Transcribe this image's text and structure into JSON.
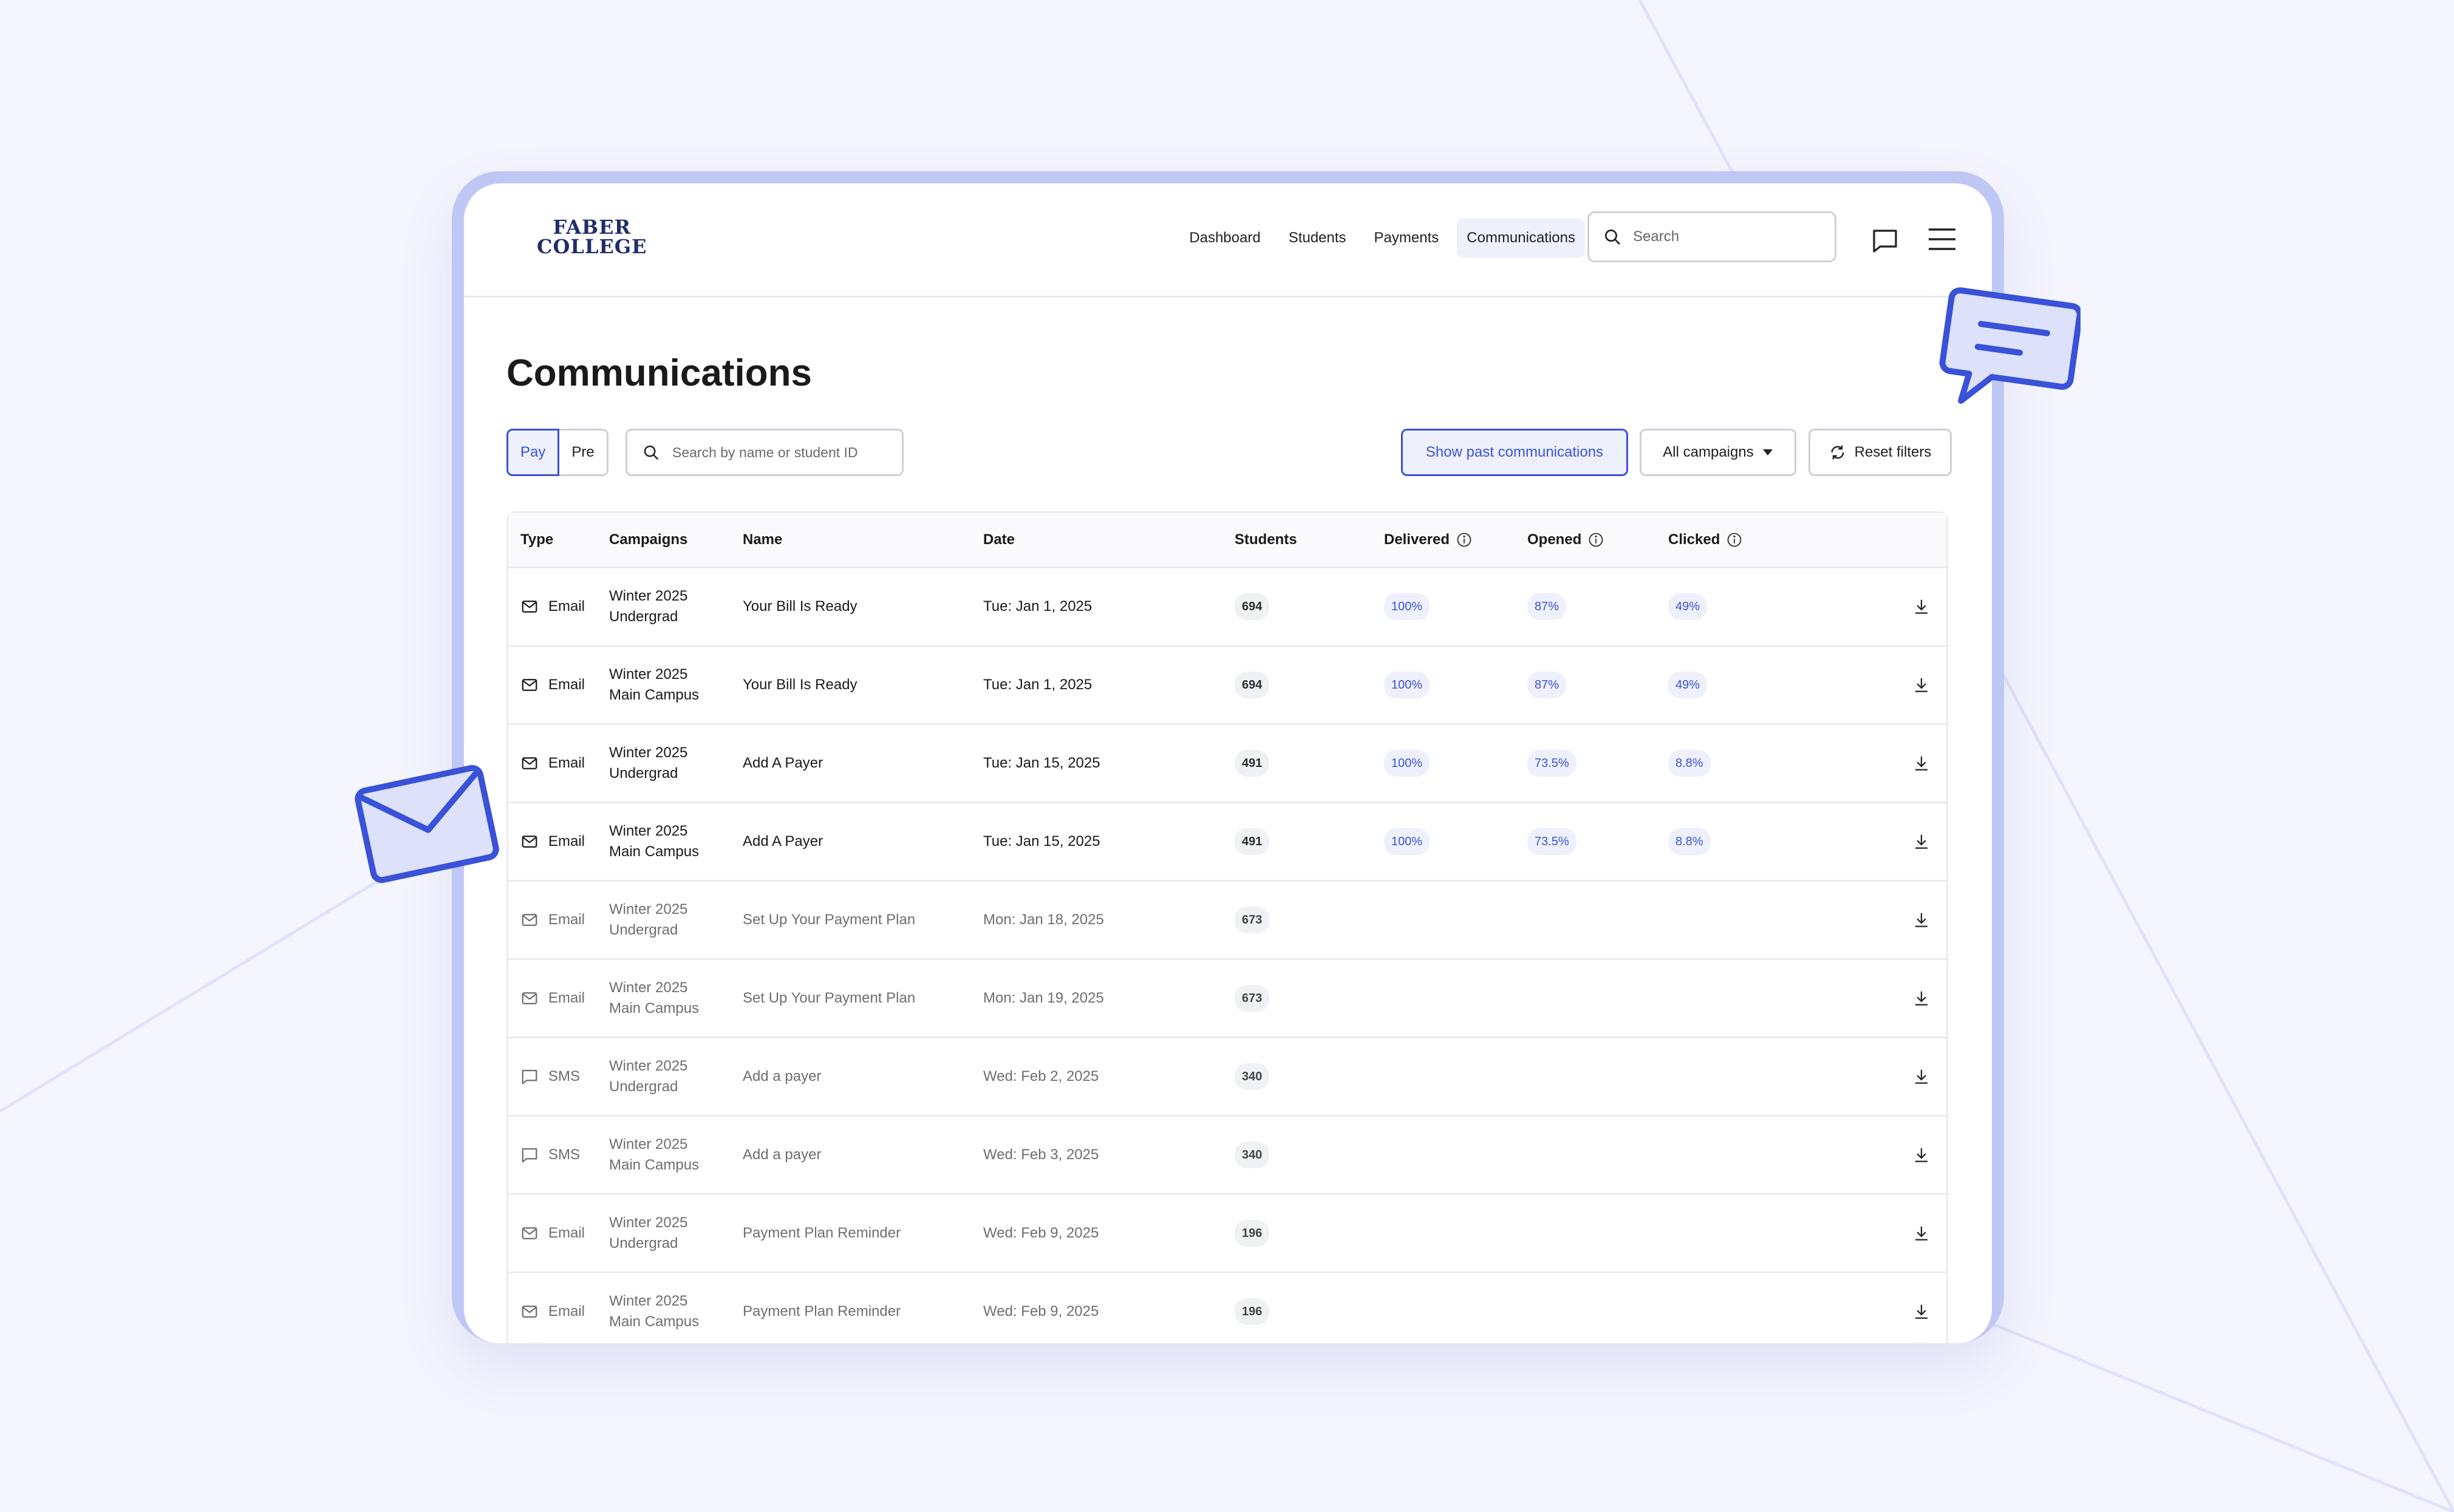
{
  "brand": {
    "line1": "FABER",
    "line2": "COLLEGE"
  },
  "nav": [
    {
      "label": "Dashboard",
      "active": false
    },
    {
      "label": "Students",
      "active": false
    },
    {
      "label": "Payments",
      "active": false
    },
    {
      "label": "Communications",
      "active": true
    }
  ],
  "header_search": {
    "placeholder": "Search"
  },
  "page": {
    "title": "Communications"
  },
  "toolbar": {
    "seg_pay": "Pay",
    "seg_pre": "Pre",
    "search_placeholder": "Search by name or student ID",
    "show_past": "Show past communications",
    "campaigns": "All campaigns",
    "reset": "Reset filters"
  },
  "table": {
    "headers": {
      "type": "Type",
      "campaigns": "Campaigns",
      "name": "Name",
      "date": "Date",
      "students": "Students",
      "delivered": "Delivered",
      "opened": "Opened",
      "clicked": "Clicked"
    },
    "rows": [
      {
        "type": "Email",
        "camp1": "Winter 2025",
        "camp2": "Undergrad",
        "name": "Your Bill Is Ready",
        "date": "Tue: Jan 1, 2025",
        "students": "694",
        "delivered": "100%",
        "opened": "87%",
        "clicked": "49%"
      },
      {
        "type": "Email",
        "camp1": "Winter 2025",
        "camp2": "Main Campus",
        "name": "Your Bill Is Ready",
        "date": "Tue: Jan 1, 2025",
        "students": "694",
        "delivered": "100%",
        "opened": "87%",
        "clicked": "49%"
      },
      {
        "type": "Email",
        "camp1": "Winter 2025",
        "camp2": "Undergrad",
        "name": "Add A Payer",
        "date": "Tue: Jan 15, 2025",
        "students": "491",
        "delivered": "100%",
        "opened": "73.5%",
        "clicked": "8.8%"
      },
      {
        "type": "Email",
        "camp1": "Winter 2025",
        "camp2": "Main Campus",
        "name": "Add A Payer",
        "date": "Tue: Jan 15, 2025",
        "students": "491",
        "delivered": "100%",
        "opened": "73.5%",
        "clicked": "8.8%"
      },
      {
        "type": "Email",
        "camp1": "Winter 2025",
        "camp2": "Undergrad",
        "name": "Set Up Your Payment Plan",
        "date": "Mon: Jan 18, 2025",
        "students": "673"
      },
      {
        "type": "Email",
        "camp1": "Winter 2025",
        "camp2": "Main Campus",
        "name": "Set Up Your Payment Plan",
        "date": "Mon: Jan 19, 2025",
        "students": "673"
      },
      {
        "type": "SMS",
        "camp1": "Winter 2025",
        "camp2": "Undergrad",
        "name": "Add a payer",
        "date": "Wed: Feb 2, 2025",
        "students": "340"
      },
      {
        "type": "SMS",
        "camp1": "Winter 2025",
        "camp2": "Main Campus",
        "name": "Add a payer",
        "date": "Wed: Feb 3, 2025",
        "students": "340"
      },
      {
        "type": "Email",
        "camp1": "Winter 2025",
        "camp2": "Undergrad",
        "name": "Payment Plan Reminder",
        "date": "Wed: Feb 9, 2025",
        "students": "196"
      },
      {
        "type": "Email",
        "camp1": "Winter 2025",
        "camp2": "Main Campus",
        "name": "Payment Plan Reminder",
        "date": "Wed: Feb 9, 2025",
        "students": "196"
      }
    ]
  },
  "icons": {
    "search": "search-icon",
    "chat": "chat-icon",
    "menu": "hamburger-menu-icon",
    "email": "mail-icon",
    "sms": "sms-bubble-icon",
    "download": "download-icon",
    "info": "info-icon",
    "caret": "caret-down-icon",
    "refresh": "refresh-icon"
  },
  "colors": {
    "accent": "#3a52d8",
    "frame": "#bfc7f5",
    "background": "#f4f5fe",
    "brand": "#1f2d6b"
  }
}
